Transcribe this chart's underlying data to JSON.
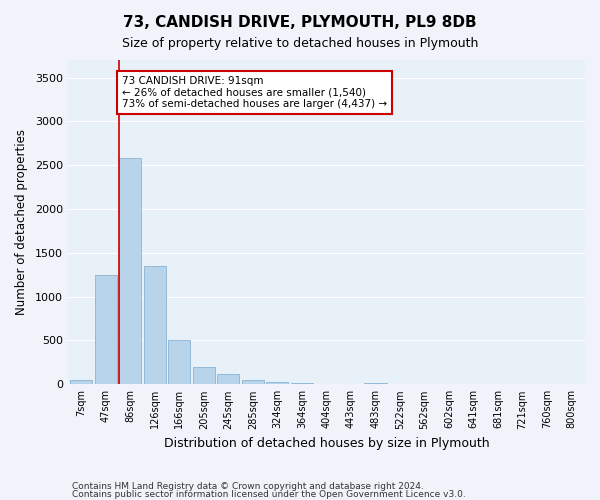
{
  "title": "73, CANDISH DRIVE, PLYMOUTH, PL9 8DB",
  "subtitle": "Size of property relative to detached houses in Plymouth",
  "xlabel": "Distribution of detached houses by size in Plymouth",
  "ylabel": "Number of detached properties",
  "bar_color": "#b8d4ea",
  "bar_edge_color": "#8ab4d4",
  "background_color": "#e8f0f8",
  "grid_color": "#ffffff",
  "annotation_box_color": "#cc0000",
  "property_line_color": "#cc0000",
  "annotation_text": "73 CANDISH DRIVE: 91sqm\n← 26% of detached houses are smaller (1,540)\n73% of semi-detached houses are larger (4,437) →",
  "footnote1": "Contains HM Land Registry data © Crown copyright and database right 2024.",
  "footnote2": "Contains public sector information licensed under the Open Government Licence v3.0.",
  "categories": [
    "7sqm",
    "47sqm",
    "86sqm",
    "126sqm",
    "166sqm",
    "205sqm",
    "245sqm",
    "285sqm",
    "324sqm",
    "364sqm",
    "404sqm",
    "443sqm",
    "483sqm",
    "522sqm",
    "562sqm",
    "602sqm",
    "641sqm",
    "681sqm",
    "721sqm",
    "760sqm",
    "800sqm"
  ],
  "values": [
    50,
    1250,
    2580,
    1350,
    500,
    200,
    115,
    50,
    30,
    15,
    5,
    5,
    20,
    0,
    0,
    0,
    0,
    0,
    0,
    0,
    0
  ],
  "ylim": [
    0,
    3700
  ],
  "yticks": [
    0,
    500,
    1000,
    1500,
    2000,
    2500,
    3000,
    3500
  ],
  "property_bin_index": 2,
  "figwidth": 6.0,
  "figheight": 5.0,
  "dpi": 100
}
